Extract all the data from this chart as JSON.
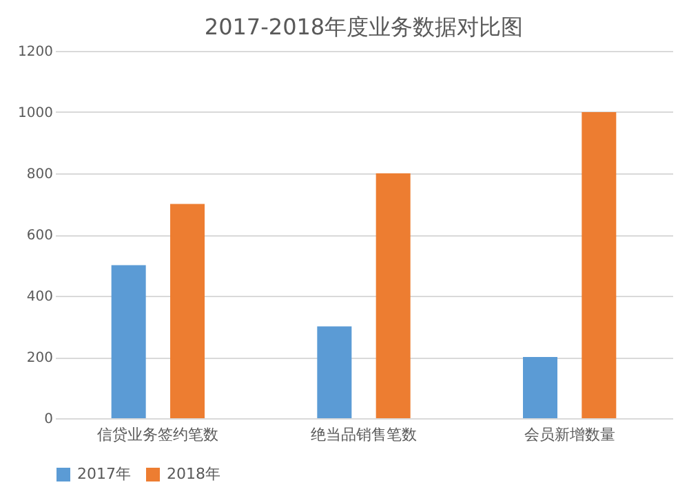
{
  "chart_data": {
    "type": "bar",
    "title": "2017-2018年度业务数据对比图",
    "categories": [
      "信贷业务签约笔数",
      "绝当品销售笔数",
      "会员新增数量"
    ],
    "series": [
      {
        "name": "2017年",
        "color": "#5b9bd5",
        "values": [
          500,
          300,
          200
        ]
      },
      {
        "name": "2018年",
        "color": "#ed7d31",
        "values": [
          700,
          800,
          1000
        ]
      }
    ],
    "ylim": [
      0,
      1200
    ],
    "yticks": [
      0,
      200,
      400,
      600,
      800,
      1000,
      1200
    ],
    "grid": "y",
    "legend": "bottom"
  }
}
